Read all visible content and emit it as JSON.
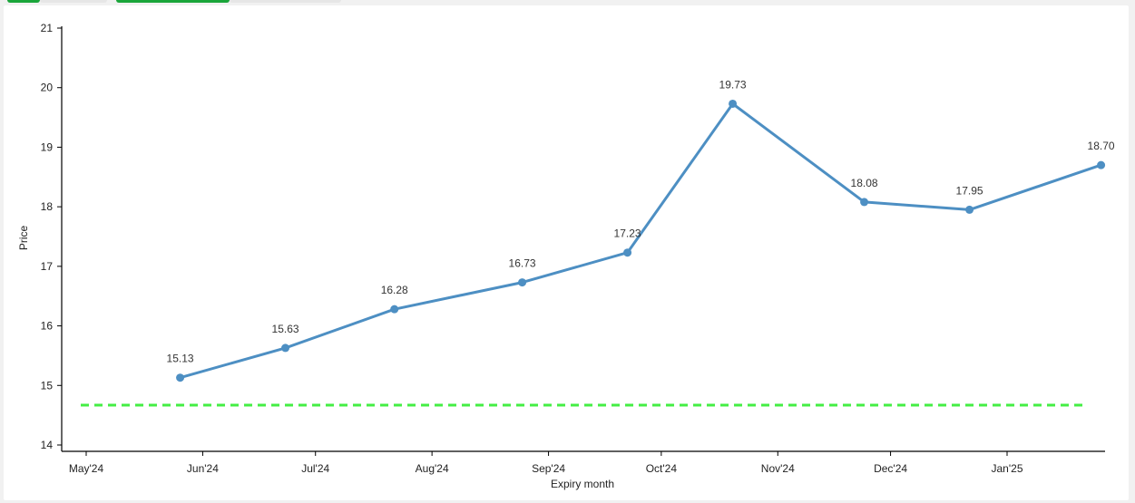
{
  "tabs": [
    {
      "label": "",
      "color": "#1aa53a"
    },
    {
      "label": "",
      "color": "#e6e6e6"
    },
    {
      "label": "",
      "color": "#1aa53a"
    },
    {
      "label": "",
      "color": "#e6e6e6"
    }
  ],
  "chart_data": {
    "type": "line",
    "xlabel": "Expiry month",
    "ylabel": "Price",
    "ylim": [
      14,
      21
    ],
    "yticks": [
      14,
      15,
      16,
      17,
      18,
      19,
      20,
      21
    ],
    "x_ticks": [
      "May'24",
      "Jun'24",
      "Jul'24",
      "Aug'24",
      "Sep'24",
      "Oct'24",
      "Nov'24",
      "Dec'24",
      "Jan'25"
    ],
    "series": [
      {
        "x": [
          "2024-05-26",
          "2024-06-23",
          "2024-07-22",
          "2024-08-25",
          "2024-09-22",
          "2024-10-20",
          "2024-11-24",
          "2024-12-22",
          "2025-01-26"
        ],
        "values": [
          15.13,
          15.63,
          16.28,
          16.73,
          17.23,
          19.73,
          18.08,
          17.95,
          18.7
        ],
        "labels": [
          "15.13",
          "15.63",
          "16.28",
          "16.73",
          "17.23",
          "19.73",
          "18.08",
          "17.95",
          "18.70"
        ],
        "color": "#4d8fc3"
      }
    ],
    "reference_line": {
      "value": 14.67,
      "color": "#44ee44",
      "style": "dashed"
    },
    "grid": false,
    "legend": "none"
  }
}
